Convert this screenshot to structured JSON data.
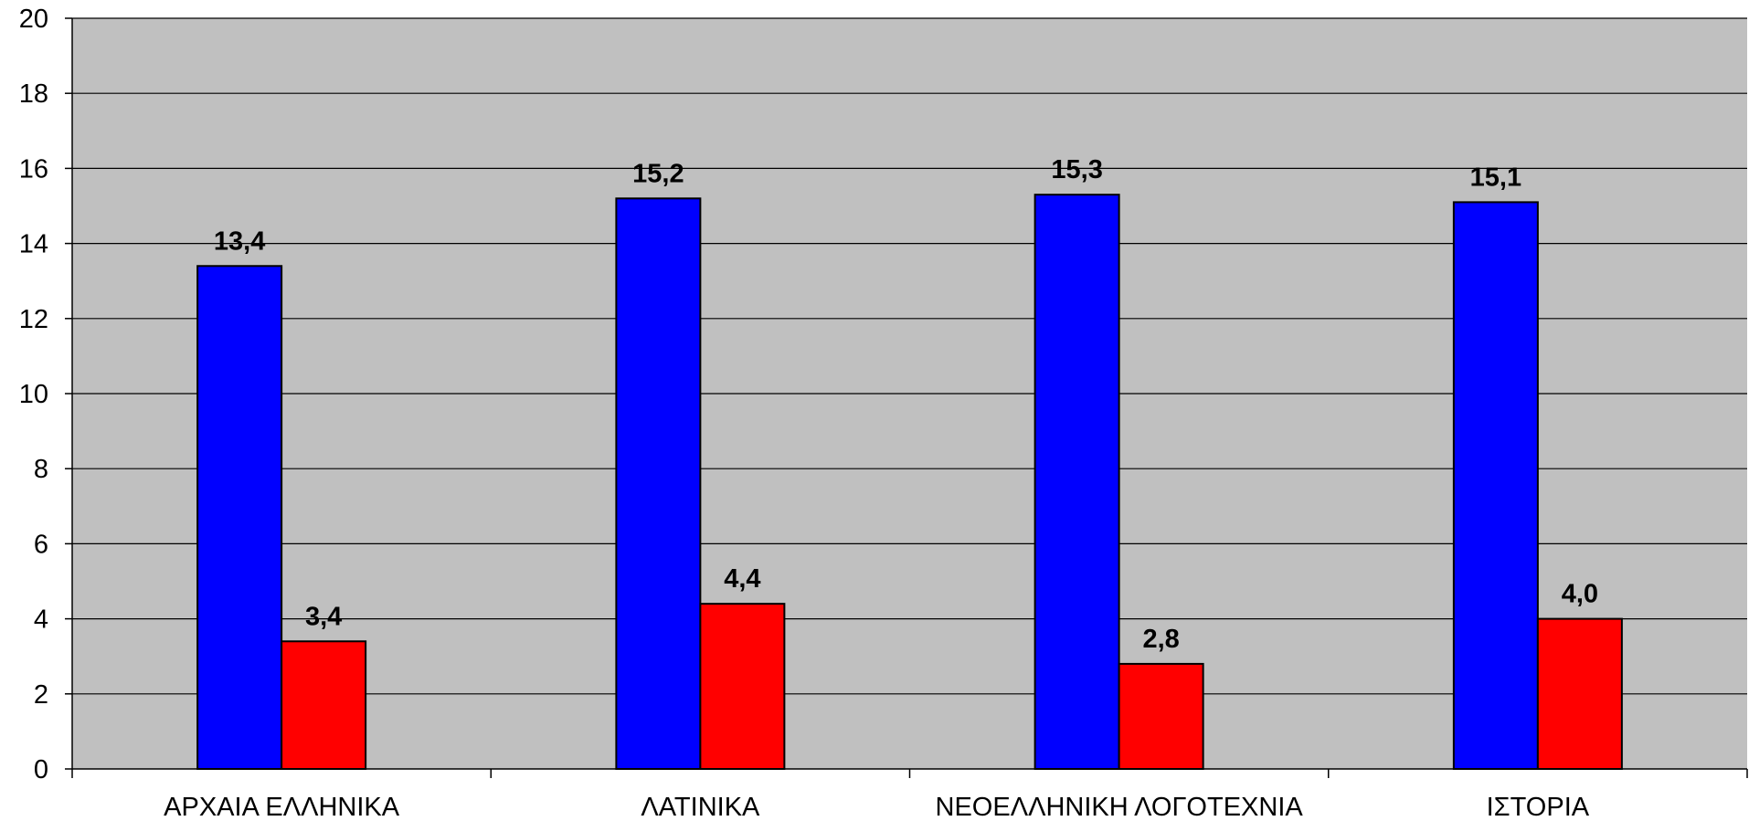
{
  "chart_data": {
    "type": "bar",
    "categories": [
      "ΑΡΧΑΙΑ ΕΛΛΗΝΙΚΑ",
      "ΛΑΤΙΝΙΚΑ",
      "ΝΕΟΕΛΛΗΝΙΚΗ ΛΟΓΟΤΕΧΝΙΑ",
      "ΙΣΤΟΡΙΑ"
    ],
    "series": [
      {
        "values": [
          13.4,
          15.2,
          15.3,
          15.1
        ],
        "labels": [
          "13,4",
          "15,2",
          "15,3",
          "15,1"
        ],
        "color": "#0000ff"
      },
      {
        "values": [
          3.4,
          4.4,
          2.8,
          4.0
        ],
        "labels": [
          "3,4",
          "4,4",
          "2,8",
          "4,0"
        ],
        "color": "#ff0000"
      }
    ],
    "ylim": [
      0,
      20
    ],
    "yticks": [
      0,
      2,
      4,
      6,
      8,
      10,
      12,
      14,
      16,
      18,
      20
    ],
    "title": "",
    "xlabel": "",
    "ylabel": "",
    "grid": true,
    "legend": "none",
    "plot_background": "#c0c0c0"
  }
}
